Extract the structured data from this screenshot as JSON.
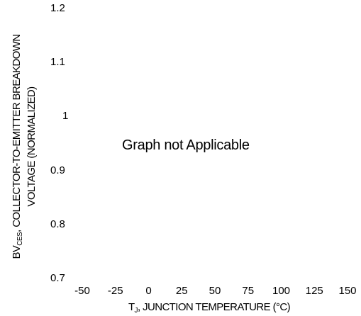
{
  "chart_data": {
    "type": "line",
    "title": "",
    "annotation": "Graph not Applicable",
    "ylabel": {
      "main": "BV",
      "sub": "CES",
      "rest_line1": ", COLLECTOR-TO-EMITTER BREAKDOWN",
      "line2": "VOLTAGE (NORMALIZED)"
    },
    "xlabel": {
      "main": "T",
      "sub": "J",
      "rest": ", JUNCTION TEMPERATURE (°C)"
    },
    "yticks": [
      "1.2",
      "1.1",
      "1",
      "0.9",
      "0.8",
      "0.7"
    ],
    "xticks": [
      "-50",
      "-25",
      "0",
      "25",
      "50",
      "75",
      "100",
      "125",
      "150"
    ],
    "ylim": [
      0.7,
      1.2
    ],
    "xlim": [
      -50,
      150
    ],
    "series": [],
    "grid": false
  }
}
